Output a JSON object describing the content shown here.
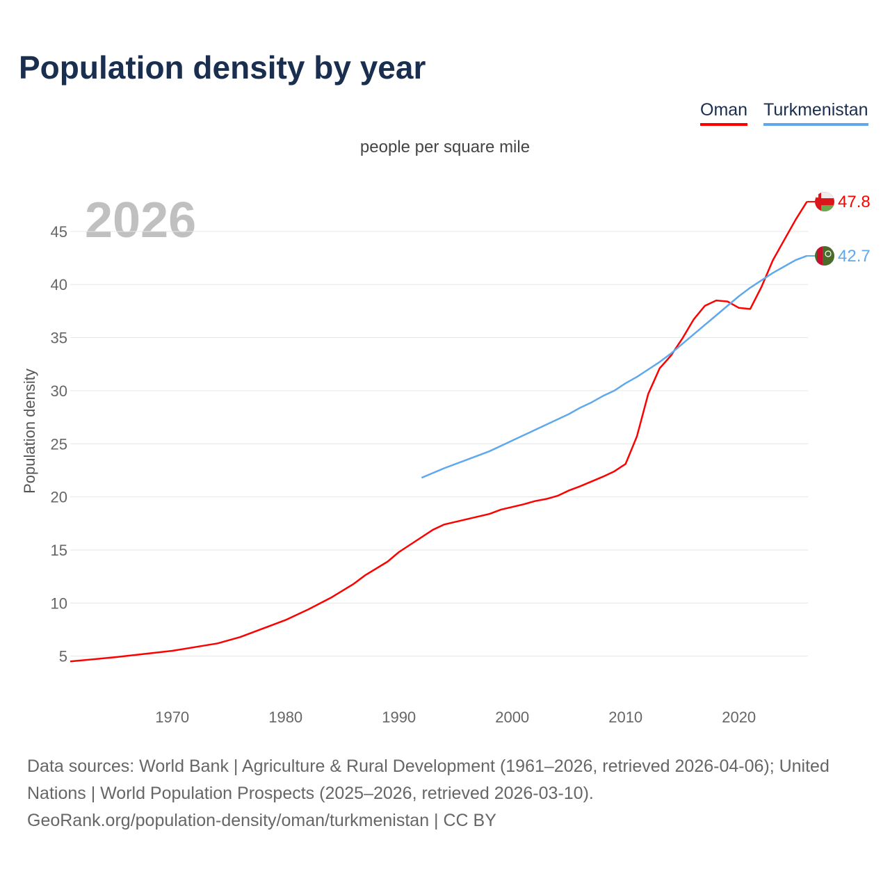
{
  "title": "Population density by year",
  "subtitle": "people per square mile",
  "year_label": "2026",
  "footer": {
    "line1": "Data sources: World Bank | Agriculture & Rural Development (1961–2026, retrieved 2026-04-06); United Nations | World Population Prospects (2025–2026, retrieved 2026-03-10).",
    "line2": "GeoRank.org/population-density/oman/turkmenistan | CC BY"
  },
  "chart_data": {
    "type": "line",
    "title": "Population density by year",
    "ylabel": "Population density",
    "xlabel": "",
    "xlim": [
      1961,
      2026
    ],
    "ylim": [
      0,
      48
    ],
    "x_ticks": [
      1970,
      1980,
      1990,
      2000,
      2010,
      2020
    ],
    "y_ticks": [
      5,
      10,
      15,
      20,
      25,
      30,
      35,
      40,
      45
    ],
    "grid": true,
    "legend_position": "top-right",
    "series": [
      {
        "name": "Oman",
        "color": "#ff0000",
        "end_label": "47.8",
        "flag": "oman-flag",
        "x": [
          1961,
          1965,
          1970,
          1974,
          1976,
          1978,
          1980,
          1982,
          1984,
          1986,
          1987,
          1989,
          1990,
          1992,
          1993,
          1994,
          1996,
          1998,
          1999,
          2001,
          2002,
          2003,
          2004,
          2005,
          2006,
          2008,
          2009,
          2010,
          2011,
          2012,
          2013,
          2014,
          2015,
          2016,
          2017,
          2018,
          2019,
          2020,
          2021,
          2022,
          2023,
          2024,
          2025,
          2026
        ],
        "values": [
          4.5,
          4.9,
          5.5,
          6.2,
          6.8,
          7.6,
          8.4,
          9.4,
          10.5,
          11.8,
          12.6,
          13.9,
          14.8,
          16.2,
          16.9,
          17.4,
          17.9,
          18.4,
          18.8,
          19.3,
          19.6,
          19.8,
          20.1,
          20.6,
          21.0,
          21.9,
          22.4,
          23.1,
          25.7,
          29.7,
          32.1,
          33.3,
          34.9,
          36.7,
          38.0,
          38.5,
          38.4,
          37.8,
          37.7,
          39.8,
          42.3,
          44.2,
          46.1,
          47.8
        ]
      },
      {
        "name": "Turkmenistan",
        "color": "#5fa8ee",
        "end_label": "42.7",
        "flag": "turkmenistan-flag",
        "x": [
          1992,
          1994,
          1996,
          1998,
          2000,
          2002,
          2004,
          2005,
          2006,
          2007,
          2008,
          2009,
          2010,
          2011,
          2012,
          2013,
          2014,
          2015,
          2016,
          2017,
          2018,
          2019,
          2020,
          2021,
          2022,
          2023,
          2024,
          2025,
          2026
        ],
        "values": [
          21.8,
          22.7,
          23.5,
          24.3,
          25.3,
          26.3,
          27.3,
          27.8,
          28.4,
          28.9,
          29.5,
          30.0,
          30.7,
          31.3,
          32.0,
          32.7,
          33.5,
          34.4,
          35.3,
          36.2,
          37.1,
          38.0,
          38.9,
          39.7,
          40.4,
          41.1,
          41.7,
          42.3,
          42.7
        ]
      }
    ]
  }
}
